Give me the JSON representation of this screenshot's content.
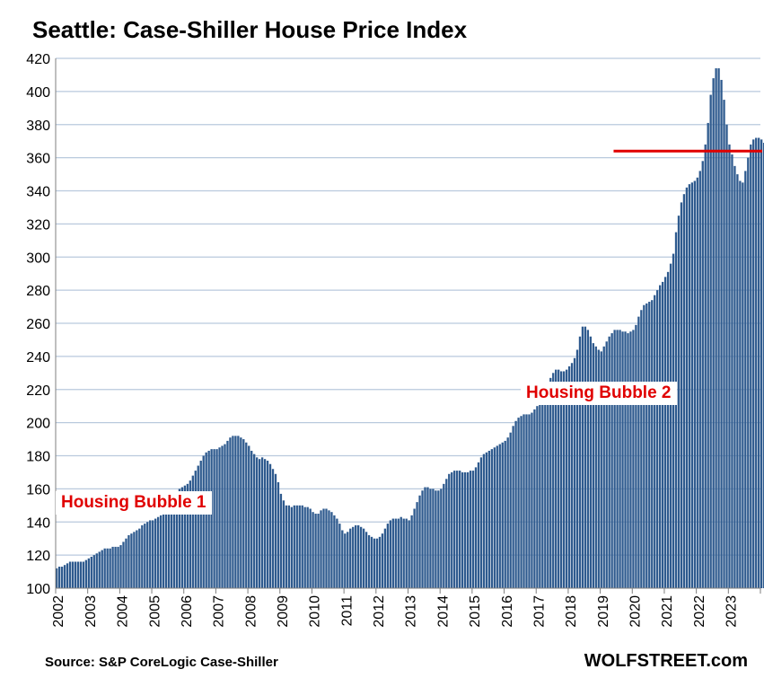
{
  "chart_data": {
    "type": "bar",
    "title": "Seattle: Case-Shiller House Price Index",
    "xlabel": "",
    "ylabel": "",
    "ylim": [
      100,
      420
    ],
    "yticks": [
      100,
      120,
      140,
      160,
      180,
      200,
      220,
      240,
      260,
      280,
      300,
      320,
      340,
      360,
      380,
      400,
      420
    ],
    "xticks": [
      "2002",
      "2003",
      "2004",
      "2005",
      "2006",
      "2007",
      "2008",
      "2009",
      "2010",
      "2011",
      "2012",
      "2013",
      "2014",
      "2015",
      "2016",
      "2017",
      "2018",
      "2019",
      "2020",
      "2021",
      "2022",
      "2023"
    ],
    "grid": "horizontal",
    "bar_color": "#2e5a8e",
    "reference_line": {
      "value": 364,
      "from": "2019-06",
      "color": "#e00000"
    },
    "annotations": [
      {
        "text": "Housing Bubble 1",
        "color": "#e00000"
      },
      {
        "text": "Housing Bubble 2",
        "color": "#e00000"
      }
    ],
    "series": [
      {
        "frequency": "monthly",
        "start": "2002-01",
        "values": [
          112,
          113,
          113,
          114,
          115,
          116,
          116,
          116,
          116,
          116,
          116,
          117,
          118,
          119,
          120,
          121,
          122,
          123,
          124,
          124,
          124,
          125,
          125,
          125,
          126,
          128,
          130,
          132,
          133,
          134,
          135,
          136,
          138,
          139,
          140,
          141,
          141,
          142,
          143,
          144,
          146,
          148,
          150,
          152,
          155,
          158,
          160,
          161,
          162,
          163,
          165,
          168,
          171,
          174,
          177,
          180,
          182,
          183,
          184,
          184,
          184,
          185,
          186,
          187,
          189,
          191,
          192,
          192,
          192,
          191,
          190,
          188,
          186,
          183,
          181,
          179,
          178,
          179,
          178,
          177,
          175,
          172,
          169,
          164,
          157,
          153,
          150,
          150,
          149,
          150,
          150,
          150,
          150,
          149,
          149,
          148,
          146,
          145,
          145,
          147,
          148,
          148,
          147,
          146,
          144,
          142,
          139,
          135,
          133,
          134,
          136,
          137,
          138,
          138,
          137,
          136,
          134,
          132,
          131,
          130,
          130,
          131,
          133,
          136,
          139,
          141,
          142,
          142,
          142,
          143,
          142,
          142,
          141,
          144,
          148,
          152,
          156,
          159,
          161,
          161,
          160,
          160,
          159,
          159,
          160,
          163,
          166,
          169,
          170,
          171,
          171,
          171,
          170,
          170,
          170,
          171,
          171,
          173,
          176,
          179,
          181,
          182,
          183,
          184,
          185,
          186,
          187,
          188,
          189,
          191,
          194,
          198,
          201,
          203,
          204,
          205,
          205,
          205,
          206,
          208,
          210,
          213,
          216,
          219,
          223,
          227,
          230,
          232,
          232,
          231,
          231,
          232,
          234,
          236,
          239,
          244,
          252,
          258,
          258,
          256,
          252,
          248,
          246,
          244,
          243,
          246,
          249,
          252,
          254,
          256,
          256,
          256,
          255,
          255,
          254,
          255,
          256,
          259,
          264,
          268,
          271,
          272,
          273,
          274,
          277,
          280,
          283,
          285,
          288,
          291,
          296,
          302,
          315,
          325,
          333,
          338,
          342,
          344,
          345,
          346,
          348,
          352,
          358,
          368,
          381,
          398,
          408,
          414,
          414,
          407,
          395,
          380,
          368,
          362,
          355,
          350,
          346,
          345,
          352,
          360,
          368,
          371,
          372,
          372,
          371,
          369,
          368
        ]
      }
    ]
  },
  "footer": {
    "source": "Source: S&P CoreLogic Case-Shiller",
    "brand": "WOLFSTREET.com"
  }
}
